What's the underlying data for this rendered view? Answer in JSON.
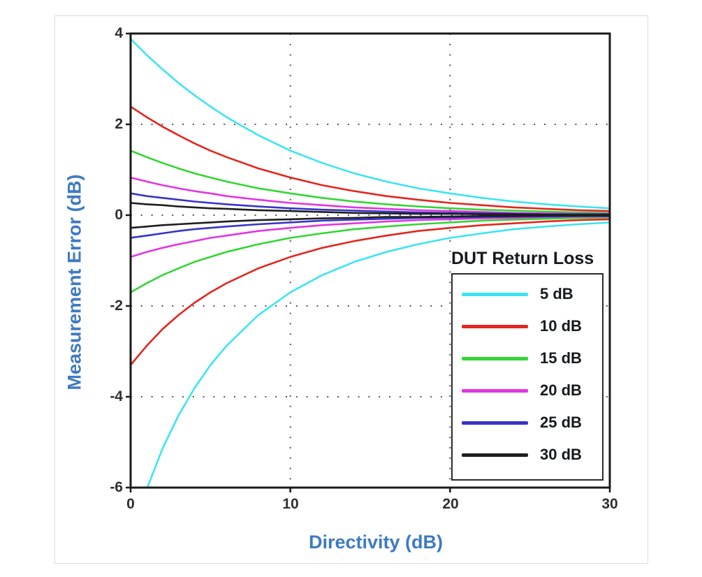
{
  "chart_data": {
    "type": "line",
    "title": "",
    "xlabel": "Directivity (dB)",
    "ylabel": "Measurement Error (dB)",
    "xlim": [
      0,
      30
    ],
    "ylim": [
      -6,
      4
    ],
    "xticks": [
      0,
      10,
      20,
      30
    ],
    "yticks": [
      4,
      2,
      0,
      -2,
      -4,
      -6
    ],
    "grid": {
      "x_dotted": [
        10,
        20
      ],
      "y_dotted": [
        2,
        0,
        -2,
        -4
      ],
      "style": "dotted",
      "color": "#555555"
    },
    "legend": {
      "title": "DUT Return Loss",
      "position": "lower right"
    },
    "axis_label_color": "#3e7ac0",
    "axis_box_color": "#1a1a1a",
    "x": [
      0,
      1,
      2,
      3,
      4,
      5,
      6,
      8,
      10,
      12,
      14,
      16,
      18,
      20,
      22,
      24,
      26,
      28,
      30
    ],
    "series": [
      {
        "name": "5 dB",
        "color": "#3be5f0",
        "upper": [
          3.88,
          3.53,
          3.21,
          2.91,
          2.64,
          2.39,
          2.16,
          1.76,
          1.42,
          1.15,
          0.92,
          0.74,
          0.59,
          0.48,
          0.38,
          0.3,
          0.24,
          0.19,
          0.15
        ],
        "lower": [
          -7.18,
          -6.04,
          -5.14,
          -4.41,
          -3.81,
          -3.3,
          -2.88,
          -2.2,
          -1.7,
          -1.32,
          -1.03,
          -0.81,
          -0.64,
          -0.5,
          -0.4,
          -0.31,
          -0.25,
          -0.2,
          -0.16
        ]
      },
      {
        "name": "10 dB",
        "color": "#e3261f",
        "upper": [
          2.39,
          2.16,
          1.95,
          1.76,
          1.58,
          1.42,
          1.28,
          1.03,
          0.83,
          0.66,
          0.53,
          0.42,
          0.34,
          0.27,
          0.22,
          0.17,
          0.14,
          0.11,
          0.09
        ],
        "lower": [
          -3.3,
          -2.88,
          -2.51,
          -2.2,
          -1.93,
          -1.7,
          -1.5,
          -1.17,
          -0.92,
          -0.72,
          -0.57,
          -0.45,
          -0.35,
          -0.28,
          -0.22,
          -0.18,
          -0.14,
          -0.11,
          -0.09
        ]
      },
      {
        "name": "15 dB",
        "color": "#33d633",
        "upper": [
          1.42,
          1.28,
          1.15,
          1.03,
          0.92,
          0.83,
          0.74,
          0.59,
          0.48,
          0.38,
          0.3,
          0.24,
          0.19,
          0.15,
          0.12,
          0.1,
          0.08,
          0.06,
          0.05
        ],
        "lower": [
          -1.7,
          -1.5,
          -1.32,
          -1.17,
          -1.03,
          -0.92,
          -0.81,
          -0.64,
          -0.5,
          -0.4,
          -0.31,
          -0.25,
          -0.2,
          -0.16,
          -0.12,
          -0.1,
          -0.08,
          -0.06,
          -0.05
        ]
      },
      {
        "name": "20 dB",
        "color": "#e136e1",
        "upper": [
          0.83,
          0.74,
          0.66,
          0.59,
          0.53,
          0.48,
          0.42,
          0.34,
          0.27,
          0.22,
          0.17,
          0.14,
          0.11,
          0.09,
          0.07,
          0.05,
          0.04,
          0.03,
          0.03
        ],
        "lower": [
          -0.92,
          -0.81,
          -0.72,
          -0.64,
          -0.57,
          -0.5,
          -0.45,
          -0.35,
          -0.28,
          -0.22,
          -0.18,
          -0.14,
          -0.11,
          -0.09,
          -0.07,
          -0.06,
          -0.04,
          -0.03,
          -0.03
        ]
      },
      {
        "name": "25 dB",
        "color": "#3734c9",
        "upper": [
          0.48,
          0.42,
          0.38,
          0.34,
          0.3,
          0.27,
          0.24,
          0.19,
          0.15,
          0.12,
          0.1,
          0.08,
          0.06,
          0.05,
          0.04,
          0.03,
          0.02,
          0.02,
          0.02
        ],
        "lower": [
          -0.5,
          -0.45,
          -0.4,
          -0.35,
          -0.31,
          -0.28,
          -0.25,
          -0.2,
          -0.16,
          -0.12,
          -0.1,
          -0.08,
          -0.06,
          -0.05,
          -0.04,
          -0.03,
          -0.03,
          -0.02,
          -0.02
        ]
      },
      {
        "name": "30 dB",
        "color": "#1e1e1e",
        "upper": [
          0.27,
          0.24,
          0.22,
          0.19,
          0.17,
          0.15,
          0.14,
          0.11,
          0.09,
          0.07,
          0.05,
          0.04,
          0.03,
          0.03,
          0.02,
          0.02,
          0.01,
          0.01,
          0.01
        ],
        "lower": [
          -0.28,
          -0.25,
          -0.22,
          -0.2,
          -0.18,
          -0.16,
          -0.14,
          -0.11,
          -0.09,
          -0.07,
          -0.06,
          -0.04,
          -0.04,
          -0.03,
          -0.02,
          -0.02,
          -0.01,
          -0.01,
          -0.01
        ]
      }
    ]
  }
}
